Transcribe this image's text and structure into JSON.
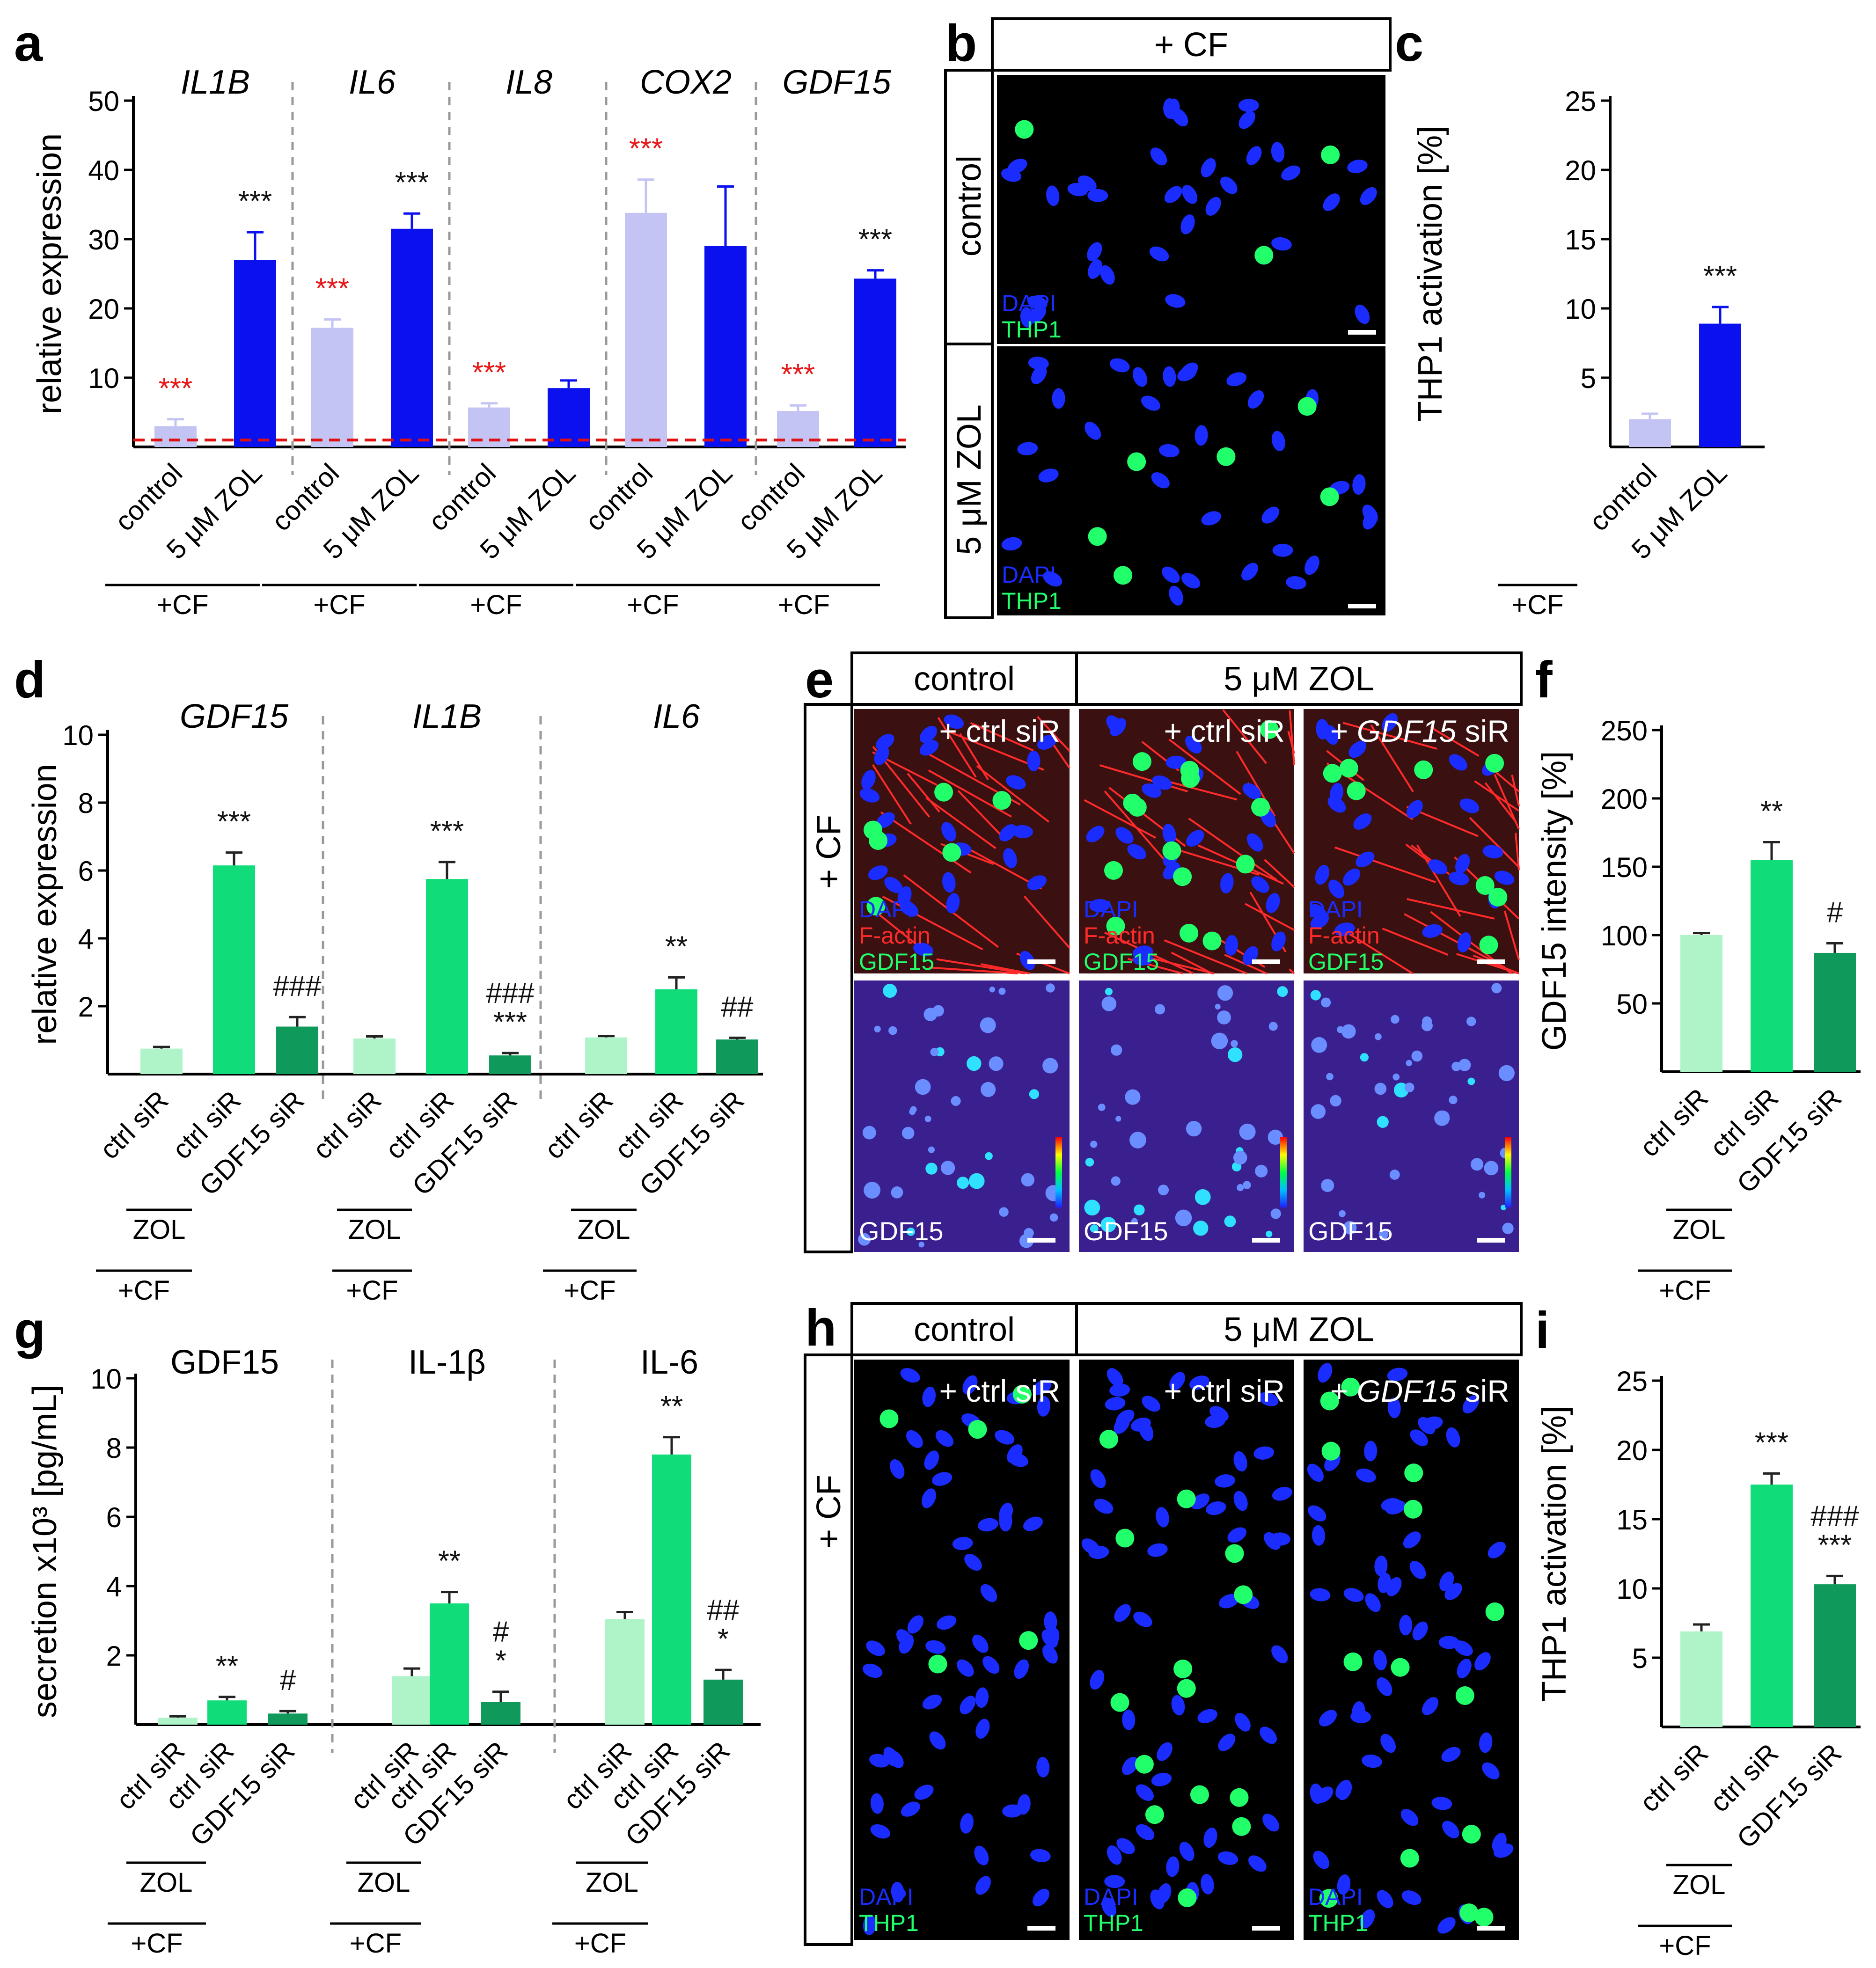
{
  "colors": {
    "ctrl_light": "#c4c4f4",
    "zol_blue": "#0a10ee",
    "green_light": "#aef4c8",
    "green_mid": "#10dd7a",
    "green_dark": "#0f9a5c",
    "sig_red": "#e81818",
    "sig_black": "#111111",
    "ref_line": "#e01010",
    "divider": "#999999",
    "micro_bg": "#000000",
    "dapi": "#1a2cff",
    "thp1": "#21ff6a",
    "factin": "#ff2a2a"
  },
  "common": {
    "plus_cf": "+CF",
    "plus_cf_panel": "+ CF",
    "zol": "ZOL",
    "ctrl_siR": "ctrl siR",
    "gdf15_siR": "GDF15 siR",
    "control": "control",
    "zol_5uM": "5 μM ZOL",
    "plus_ctrl_siR": "+ ctrl siR",
    "plus_gdf15_prefix": "+ ",
    "plus_gdf15_gene": "GDF15",
    "plus_gdf15_suffix": " siR",
    "dapi": "DAPI",
    "thp1": "THP1",
    "factin": "F-actin",
    "gdf15": "GDF15"
  },
  "chart_data": [
    {
      "panel": "a",
      "type": "bar",
      "ylabel": "relative expression",
      "ylim": [
        0,
        50
      ],
      "yticks": [
        10,
        20,
        30,
        40,
        50
      ],
      "reference_line": 1,
      "categories": [
        "control",
        "5 μM ZOL"
      ],
      "groups": [
        {
          "title": "IL1B",
          "values": [
            3,
            27
          ],
          "errors": [
            1.0,
            4.0
          ],
          "sig": [
            "***",
            "***"
          ],
          "sig_colors": [
            "red",
            "black"
          ]
        },
        {
          "title": "IL6",
          "values": [
            17.2,
            31.5
          ],
          "errors": [
            1.2,
            2.2
          ],
          "sig": [
            "***",
            "***"
          ],
          "sig_colors": [
            "red",
            "black"
          ]
        },
        {
          "title": "IL8",
          "values": [
            5.7,
            8.5
          ],
          "errors": [
            0.6,
            1.1
          ],
          "sig": [
            "***",
            ""
          ],
          "sig_colors": [
            "red",
            "black"
          ]
        },
        {
          "title": "COX2",
          "values": [
            33.8,
            29
          ],
          "errors": [
            4.8,
            8.6
          ],
          "sig": [
            "***",
            ""
          ],
          "sig_colors": [
            "red",
            "black"
          ]
        },
        {
          "title": "GDF15",
          "values": [
            5.2,
            24.3
          ],
          "errors": [
            0.8,
            1.2
          ],
          "sig": [
            "***",
            "***"
          ],
          "sig_colors": [
            "red",
            "black"
          ]
        }
      ]
    },
    {
      "panel": "c",
      "type": "bar",
      "ylabel": "THP1 activation [%]",
      "ylim": [
        0,
        25
      ],
      "yticks": [
        5,
        10,
        15,
        20,
        25
      ],
      "categories": [
        "control",
        "5 μM ZOL"
      ],
      "values": [
        2,
        8.9
      ],
      "errors": [
        0.4,
        1.2
      ],
      "sig": [
        "",
        "***"
      ]
    },
    {
      "panel": "d",
      "type": "bar",
      "ylabel": "relative expression",
      "ylim": [
        0,
        10
      ],
      "yticks": [
        2,
        4,
        6,
        8,
        10
      ],
      "categories": [
        "ctrl siR",
        "ctrl siR",
        "GDF15 siR"
      ],
      "groups": [
        {
          "title": "GDF15",
          "values": [
            0.75,
            6.15
          ],
          "errors": [
            0.05,
            0.38
          ],
          "sig": [
            "",
            "***"
          ],
          "extra": {
            "value": 1.4,
            "error": 0.28,
            "sig": "###"
          }
        },
        {
          "title": "IL1B",
          "values": [
            1.05,
            5.75
          ],
          "errors": [
            0.06,
            0.5
          ],
          "sig": [
            "",
            "***"
          ],
          "extra": {
            "value": 0.55,
            "error": 0.07,
            "sig": "###\n***"
          }
        },
        {
          "title": "IL6",
          "values": [
            1.08,
            2.5
          ],
          "errors": [
            0.04,
            0.35
          ],
          "sig": [
            "",
            "**"
          ],
          "extra": {
            "value": 1.02,
            "error": 0.05,
            "sig": "##"
          }
        }
      ]
    },
    {
      "panel": "f",
      "type": "bar",
      "ylabel": "GDF15 intensity [%]",
      "ylim": [
        0,
        250
      ],
      "yticks": [
        50,
        100,
        150,
        200,
        250
      ],
      "categories": [
        "ctrl siR",
        "ctrl siR",
        "GDF15 siR"
      ],
      "values": [
        100,
        155,
        87
      ],
      "errors": [
        1.5,
        13,
        7
      ],
      "sig": [
        "",
        "**",
        "#"
      ]
    },
    {
      "panel": "g",
      "type": "bar",
      "ylabel": "secretion x10³ [pg/mL]",
      "ylim": [
        0,
        10
      ],
      "yticks": [
        2,
        4,
        6,
        8,
        10
      ],
      "categories": [
        "ctrl siR",
        "ctrl siR",
        "GDF15 siR"
      ],
      "groups": [
        {
          "title": "GDF15",
          "values": [
            0.2,
            0.7
          ],
          "errors": [
            0.04,
            0.1
          ],
          "sig": [
            "",
            "**"
          ],
          "extra": {
            "value": 0.32,
            "error": 0.07,
            "sig": "#"
          }
        },
        {
          "title": "IL-1β",
          "values": [
            1.4,
            3.5
          ],
          "errors": [
            0.22,
            0.33
          ],
          "sig": [
            "",
            "**"
          ],
          "extra": {
            "value": 0.65,
            "error": 0.3,
            "sig": "#\n*"
          }
        },
        {
          "title": "IL-6",
          "values": [
            3.05,
            7.8
          ],
          "errors": [
            0.2,
            0.5
          ],
          "sig": [
            "",
            "**"
          ],
          "extra": {
            "value": 1.3,
            "error": 0.28,
            "sig": "##\n*"
          }
        }
      ]
    },
    {
      "panel": "i",
      "type": "bar",
      "ylabel": "THP1 activation [%]",
      "ylim": [
        0,
        25
      ],
      "yticks": [
        5,
        10,
        15,
        20,
        25
      ],
      "categories": [
        "ctrl siR",
        "ctrl siR",
        "GDF15 siR"
      ],
      "values": [
        6.9,
        17.5,
        10.3
      ],
      "errors": [
        0.5,
        0.8,
        0.6
      ],
      "sig": [
        "",
        "***",
        "###\n***"
      ]
    }
  ],
  "micrographs": {
    "b": {
      "letter": "b",
      "header": "+ CF",
      "rows": [
        "control",
        "5 μM ZOL"
      ]
    },
    "e": {
      "letter": "e",
      "headers": [
        "control",
        "5 μM ZOL"
      ]
    },
    "h": {
      "letter": "h",
      "headers": [
        "control",
        "5 μM ZOL"
      ]
    }
  },
  "panel_letters": [
    "a",
    "c",
    "d",
    "f",
    "g",
    "i"
  ]
}
